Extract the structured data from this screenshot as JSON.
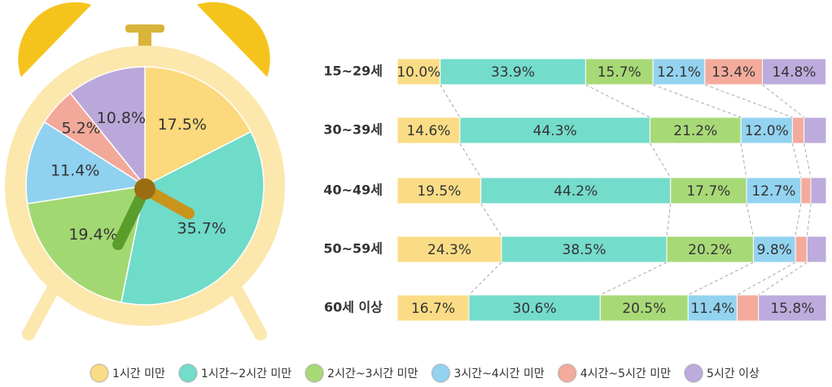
{
  "chart_data": [
    {
      "type": "pie",
      "values": [
        17.5,
        35.7,
        19.4,
        11.4,
        5.2,
        10.8
      ],
      "value_labels": [
        "17.5%",
        "35.7%",
        "19.4%",
        "11.4%",
        "5.2%",
        "10.8%"
      ],
      "colors": [
        "#fbd97c",
        "#6fdbc9",
        "#a2d872",
        "#8fd1ef",
        "#f3a99a",
        "#bba8da"
      ]
    },
    {
      "type": "bar",
      "orientation": "horizontal",
      "stacked": true,
      "categories": [
        "15~29세",
        "30~39세",
        "40~49세",
        "50~59세",
        "60세 이상"
      ],
      "xlim": [
        0,
        100
      ],
      "series": [
        {
          "name": "1시간 미만",
          "color": "#fbdc86",
          "values": [
            10.0,
            14.6,
            19.5,
            24.3,
            16.7
          ],
          "value_labels": [
            "10.0%",
            "14.6%",
            "19.5%",
            "24.3%",
            "16.7%"
          ]
        },
        {
          "name": "1시간~2시간 미만",
          "color": "#74dccb",
          "values": [
            33.9,
            44.3,
            44.2,
            38.5,
            30.6
          ],
          "value_labels": [
            "33.9%",
            "44.3%",
            "44.2%",
            "38.5%",
            "30.6%"
          ]
        },
        {
          "name": "2시간~3시간 미만",
          "color": "#a8d977",
          "values": [
            15.7,
            21.2,
            17.7,
            20.2,
            20.5
          ],
          "value_labels": [
            "15.7%",
            "21.2%",
            "17.7%",
            "20.2%",
            "20.5%"
          ]
        },
        {
          "name": "3시간~4시간 미만",
          "color": "#93d3f0",
          "values": [
            12.1,
            12.0,
            12.7,
            9.8,
            11.4
          ],
          "value_labels": [
            "12.1%",
            "12.0%",
            "12.7%",
            "9.8%",
            "11.4%"
          ]
        },
        {
          "name": "4시간~5시간 미만",
          "color": "#f4ab9c",
          "values": [
            13.4,
            2.7,
            2.3,
            2.7,
            5.0
          ],
          "value_labels": [
            "13.4%",
            null,
            null,
            null,
            null
          ]
        },
        {
          "name": "5시간 이상",
          "color": "#bcabdc",
          "values": [
            14.8,
            5.2,
            3.6,
            4.5,
            15.8
          ],
          "value_labels": [
            "14.8%",
            null,
            null,
            null,
            "15.8%"
          ]
        }
      ]
    }
  ]
}
